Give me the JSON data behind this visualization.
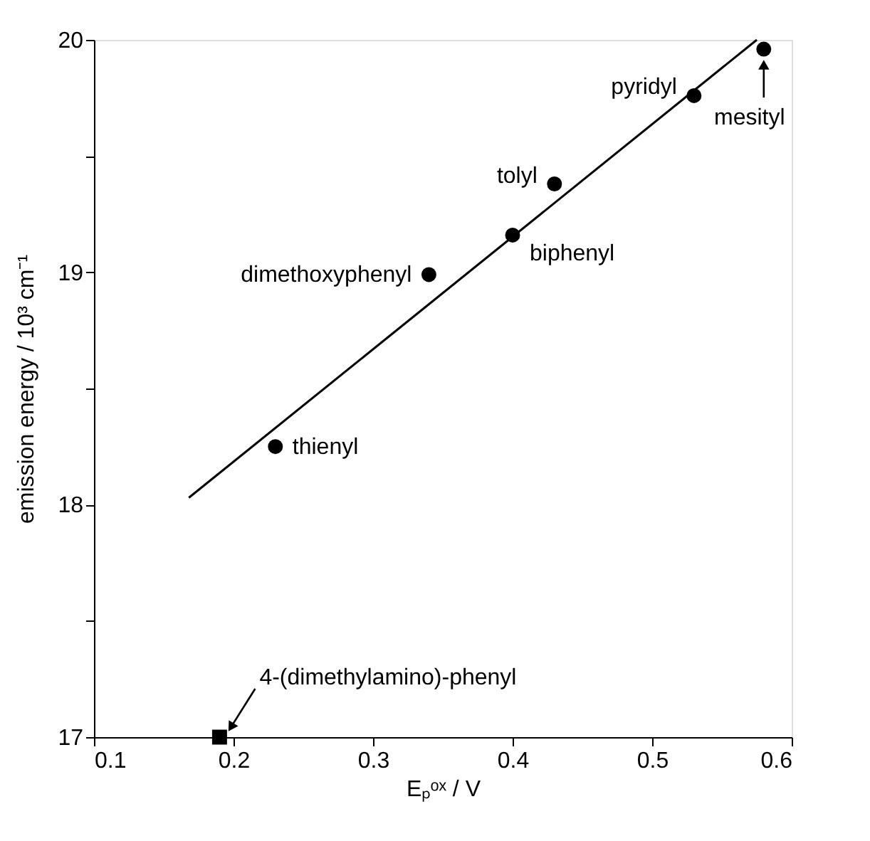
{
  "chart_data": {
    "type": "scatter",
    "xlabel": "Eₚᵒˣ / V",
    "ylabel": "emission energy / 10³ cm⁻¹",
    "xlim": [
      0.1,
      0.6
    ],
    "ylim": [
      17,
      20
    ],
    "xticks": [
      0.1,
      0.2,
      0.3,
      0.4,
      0.5,
      0.6
    ],
    "yticks": [
      17,
      {
        "value": 17.5,
        "label": null
      },
      18,
      {
        "value": 18.5,
        "label": null
      },
      19,
      {
        "value": 19.5,
        "label": null
      },
      20
    ],
    "grid": false,
    "series": [
      {
        "marker": "circle",
        "color": "#000000",
        "x": [
          0.23,
          0.34,
          0.4,
          0.43,
          0.53,
          0.58
        ],
        "values": [
          18.25,
          18.99,
          19.16,
          19.38,
          19.76,
          19.96
        ]
      },
      {
        "marker": "square",
        "color": "#000000",
        "x": [
          0.19
        ],
        "values": [
          17.0
        ]
      },
      {
        "type": "line",
        "color": "#000000",
        "line_style": "solid",
        "x": [
          0.168,
          0.575
        ],
        "values": [
          18.03,
          20.0
        ]
      }
    ],
    "annotations": [
      {
        "text": "thienyl",
        "x": 0.23,
        "y": 18.25
      },
      {
        "text": "dimethoxyphenyl",
        "x": 0.34,
        "y": 18.99
      },
      {
        "text": "biphenyl",
        "x": 0.4,
        "y": 19.16
      },
      {
        "text": "tolyl",
        "x": 0.43,
        "y": 19.38
      },
      {
        "text": "pyridyl",
        "x": 0.53,
        "y": 19.76
      },
      {
        "text": "mesityl",
        "x": 0.58,
        "y": 19.96
      },
      {
        "text": "4-(dimethylamino)-phenyl",
        "x": 0.19,
        "y": 17.0
      }
    ]
  }
}
